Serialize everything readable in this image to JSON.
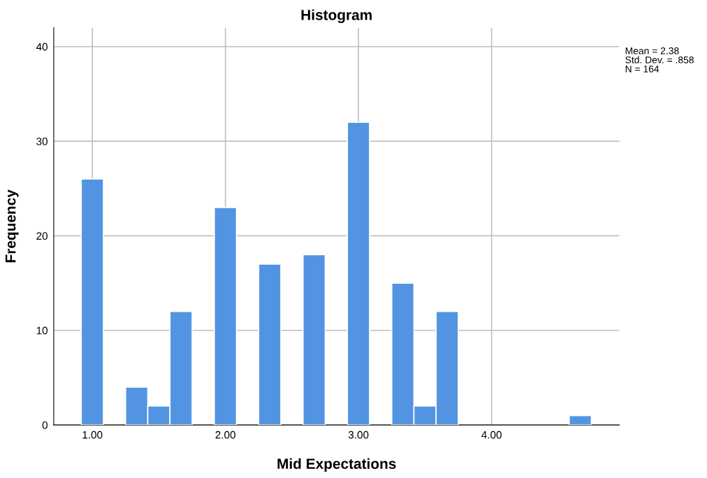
{
  "chart_data": {
    "type": "histogram",
    "title": "Histogram",
    "xlabel": "Mid Expectations",
    "ylabel": "Frequency",
    "bins": [
      0.9167,
      1.0833,
      1.25,
      1.4167,
      1.5833,
      1.75,
      1.9167,
      2.0833,
      2.25,
      2.4167,
      2.5833,
      2.75,
      2.9167,
      3.0833,
      3.25,
      3.4167,
      3.5833,
      3.75,
      3.9167,
      4.0833,
      4.25,
      4.4167,
      4.5833,
      4.75
    ],
    "values": [
      26,
      0,
      4,
      2,
      12,
      0,
      23,
      0,
      17,
      0,
      18,
      0,
      32,
      0,
      15,
      2,
      12,
      0,
      0,
      0,
      0,
      0,
      1
    ],
    "color": "#5294e2",
    "xlim": [
      0.71,
      4.96
    ],
    "xticks": [
      {
        "value": 1,
        "label": "1.00"
      },
      {
        "value": 2,
        "label": "2.00"
      },
      {
        "value": 3,
        "label": "3.00"
      },
      {
        "value": 4,
        "label": "4.00"
      }
    ],
    "ylim": [
      0,
      42
    ],
    "yticks": [
      0,
      10,
      20,
      30,
      40
    ],
    "grid": true,
    "annotations": [
      "Mean = 2.38",
      "Std. Dev. = .858",
      "N = 164"
    ]
  }
}
